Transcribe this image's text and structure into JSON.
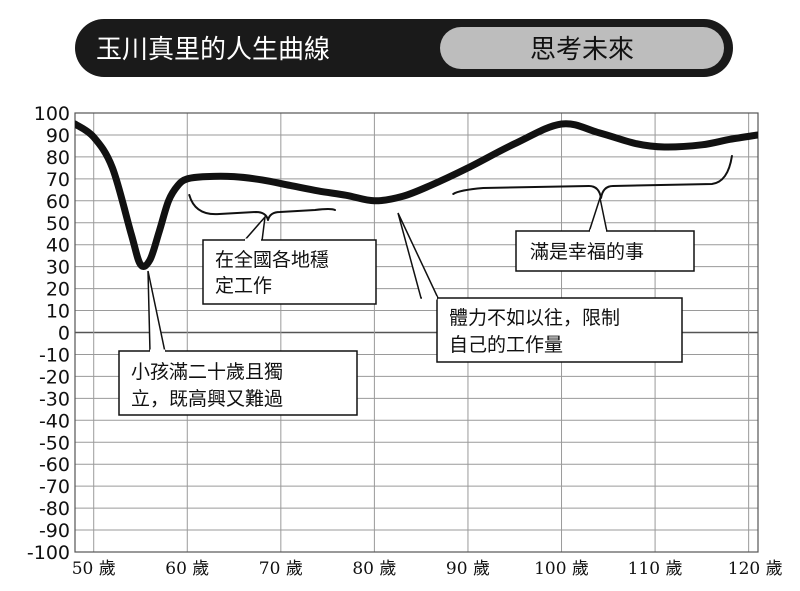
{
  "header": {
    "title": "玉川真里的人生曲線",
    "subtitle": "思考未來"
  },
  "chart_data": {
    "type": "line",
    "title": "玉川真里的人生曲線",
    "xlabel": "",
    "ylabel": "",
    "xlim": [
      48,
      121
    ],
    "ylim": [
      -100,
      100
    ],
    "yticks": [
      100,
      90,
      80,
      70,
      60,
      50,
      40,
      30,
      20,
      10,
      0,
      -10,
      -20,
      -30,
      -40,
      -50,
      -60,
      -70,
      -80,
      -90,
      -100
    ],
    "xtick_labels": [
      {
        "x": 50,
        "label": "50 歲"
      },
      {
        "x": 60,
        "label": "60 歲"
      },
      {
        "x": 70,
        "label": "70 歲"
      },
      {
        "x": 80,
        "label": "80 歲"
      },
      {
        "x": 90,
        "label": "90 歲"
      },
      {
        "x": 100,
        "label": "100 歲"
      },
      {
        "x": 110,
        "label": "110 歲"
      },
      {
        "x": 120,
        "label": "120 歲"
      }
    ],
    "grid": true,
    "series": [
      {
        "x": [
          48,
          50,
          52,
          54,
          55,
          56,
          57,
          58,
          59,
          60,
          62,
          65,
          68,
          71,
          74,
          77,
          80,
          83,
          86,
          90,
          95,
          100,
          104,
          108,
          111,
          115,
          118,
          121
        ],
        "values": [
          95,
          89,
          75,
          45,
          31,
          33,
          46,
          60,
          67,
          70,
          71,
          71,
          69.5,
          67,
          64.5,
          62.5,
          60,
          62,
          67,
          75,
          86,
          95,
          91,
          86,
          84.5,
          85.5,
          88,
          90
        ]
      }
    ],
    "annotations": [
      {
        "text": [
          "小孩滿二十歲且獨",
          "立，既高興又難過"
        ],
        "x": 55,
        "y": 31
      },
      {
        "text": [
          "在全國各地穩",
          "定工作"
        ],
        "x": 67.5,
        "y": 55,
        "brace_from": 60,
        "brace_to": 76
      },
      {
        "text": [
          "體力不如以往，限制",
          "自己的工作量"
        ],
        "x": 80.5,
        "y": 58
      },
      {
        "text": [
          "滿是幸福的事"
        ],
        "x": 103,
        "y": 62,
        "brace_from": 88,
        "brace_to": 118
      }
    ]
  }
}
